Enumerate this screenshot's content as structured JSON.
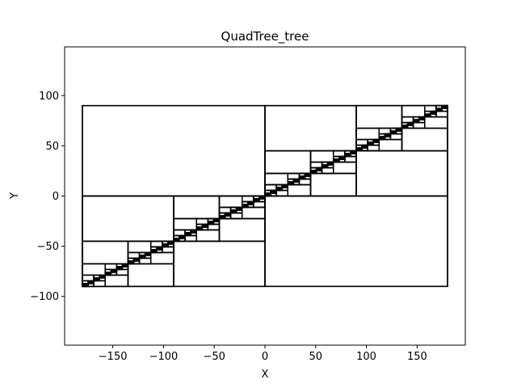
{
  "chart_data": {
    "type": "quadtree",
    "title": "QuadTree_tree",
    "xlabel": "X",
    "ylabel": "Y",
    "xlim": [
      -197.5,
      197.5
    ],
    "ylim": [
      -148.5,
      148.5
    ],
    "xticks": [
      -150,
      -100,
      -50,
      0,
      50,
      100,
      150
    ],
    "yticks": [
      -100,
      -50,
      0,
      50,
      100
    ],
    "xtick_labels": [
      "−150",
      "−100",
      "−50",
      "0",
      "50",
      "100",
      "150"
    ],
    "ytick_labels": [
      "−100",
      "−50",
      "0",
      "50",
      "100"
    ],
    "root": [
      -180,
      -90,
      180,
      90
    ],
    "max_depth": 8,
    "line_color": "#000000",
    "grid": false
  }
}
